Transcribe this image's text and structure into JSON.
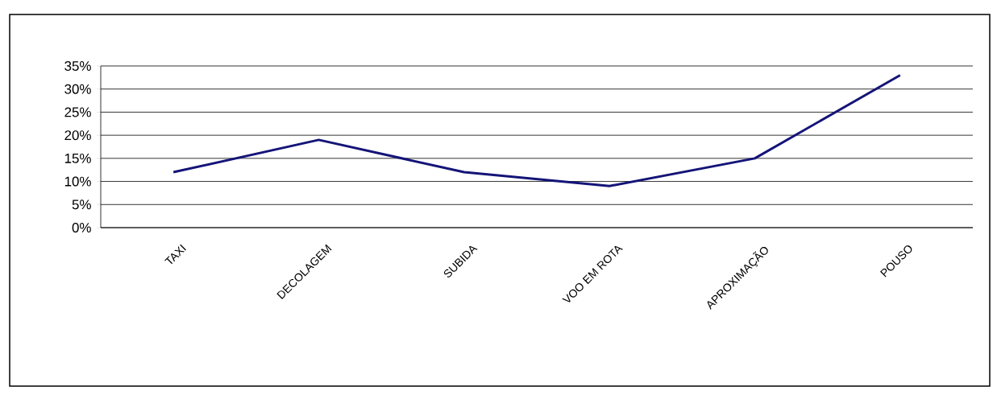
{
  "chart_data": {
    "type": "line",
    "categories": [
      "TAXI",
      "DECOLAGEM",
      "SUBIDA",
      "VOO EM ROTA",
      "APROXIMAÇÃO",
      "POUSO"
    ],
    "series": [
      {
        "color": "#141478",
        "values": [
          12,
          19,
          12,
          9,
          15,
          33
        ]
      }
    ],
    "ylim": [
      0,
      35
    ],
    "yticks": [
      {
        "value": 0,
        "label": "0%"
      },
      {
        "value": 5,
        "label": "5%"
      },
      {
        "value": 10,
        "label": "10%"
      },
      {
        "value": 15,
        "label": "15%"
      },
      {
        "value": 20,
        "label": "20%"
      },
      {
        "value": 25,
        "label": "25%"
      },
      {
        "value": 30,
        "label": "30%"
      },
      {
        "value": 35,
        "label": "35%"
      }
    ],
    "grid": "y",
    "marker": "none",
    "line_style": "solid"
  }
}
